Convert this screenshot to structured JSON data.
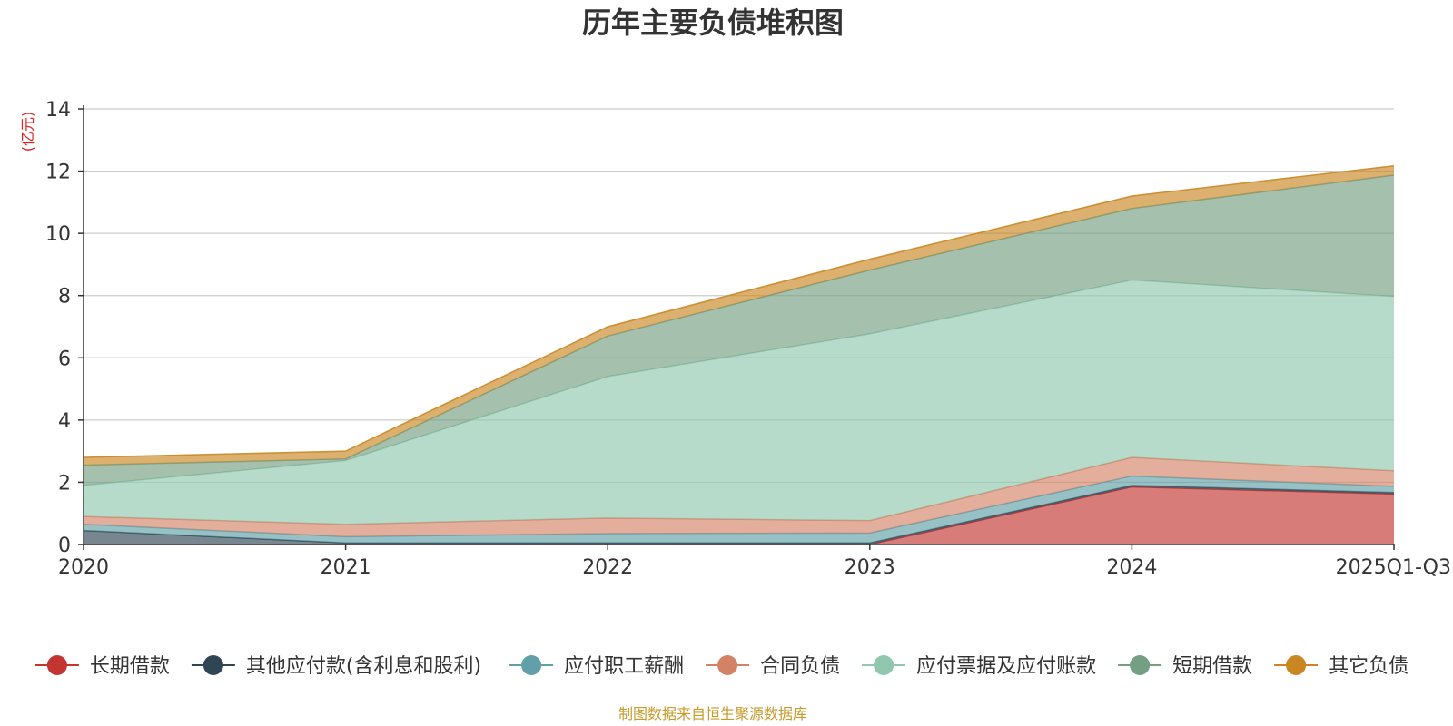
{
  "chart_data": {
    "type": "area",
    "stacked": true,
    "title": "历年主要负债堆积图",
    "unit_label": "(亿元)",
    "categories": [
      "2020",
      "2021",
      "2022",
      "2023",
      "2024",
      "2025Q1-Q3"
    ],
    "ylim": [
      0,
      14
    ],
    "yticks": [
      0,
      2,
      4,
      6,
      8,
      10,
      12,
      14
    ],
    "grid": true,
    "legend_position": "bottom",
    "series": [
      {
        "name": "长期借款",
        "color": "#c23531",
        "values": [
          0,
          0,
          0,
          0,
          1.85,
          1.62
        ]
      },
      {
        "name": "其他应付款(含利息和股利)",
        "color": "#2f4554",
        "values": [
          0.45,
          0.05,
          0.05,
          0.05,
          0.05,
          0.05
        ]
      },
      {
        "name": "应付职工薪酬",
        "color": "#61a0a8",
        "values": [
          0.2,
          0.2,
          0.3,
          0.32,
          0.3,
          0.2
        ]
      },
      {
        "name": "合同负债",
        "color": "#d48265",
        "values": [
          0.25,
          0.4,
          0.5,
          0.4,
          0.6,
          0.5
        ]
      },
      {
        "name": "应付票据及应付账款",
        "color": "#91c7ae",
        "values": [
          1.0,
          2.05,
          4.55,
          6.0,
          5.7,
          5.6
        ]
      },
      {
        "name": "短期借款",
        "color": "#749f83",
        "values": [
          0.65,
          0.05,
          1.3,
          2.05,
          2.3,
          3.9
        ]
      },
      {
        "name": "其它负债",
        "color": "#ca8622",
        "values": [
          0.25,
          0.25,
          0.3,
          0.35,
          0.4,
          0.3
        ]
      }
    ]
  },
  "footer": {
    "source": "制图数据来自恒生聚源数据库"
  }
}
